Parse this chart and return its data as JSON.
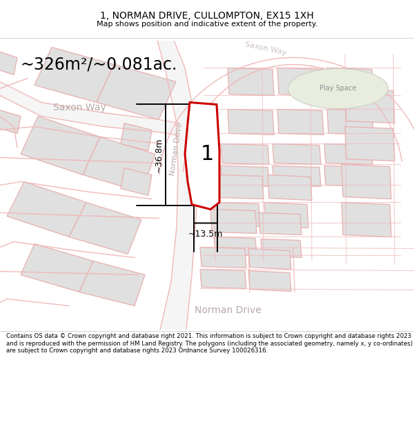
{
  "title": "1, NORMAN DRIVE, CULLOMPTON, EX15 1XH",
  "subtitle": "Map shows position and indicative extent of the property.",
  "area_text": "~326m²/~0.081ac.",
  "dim_width": "~13.5m",
  "dim_height": "~36.8m",
  "plot_label": "1",
  "play_space_label": "Play Space",
  "plot_fill": "#ffffff",
  "plot_stroke": "#cc0000",
  "road_line": "#f0b8b8",
  "building_fill": "#e0e0e0",
  "building_edge": "#e8b0b0",
  "map_bg": "#f8f8f8",
  "play_fill": "#e8ede0",
  "footer": "Contains OS data © Crown copyright and database right 2021. This information is subject to Crown copyright and database rights 2023 and is reproduced with the permission of HM Land Registry. The polygons (including the associated geometry, namely x, y co-ordinates) are subject to Crown copyright and database rights 2023 Ordnance Survey 100026316.",
  "fig_width": 6.0,
  "fig_height": 6.25,
  "dpi": 100
}
